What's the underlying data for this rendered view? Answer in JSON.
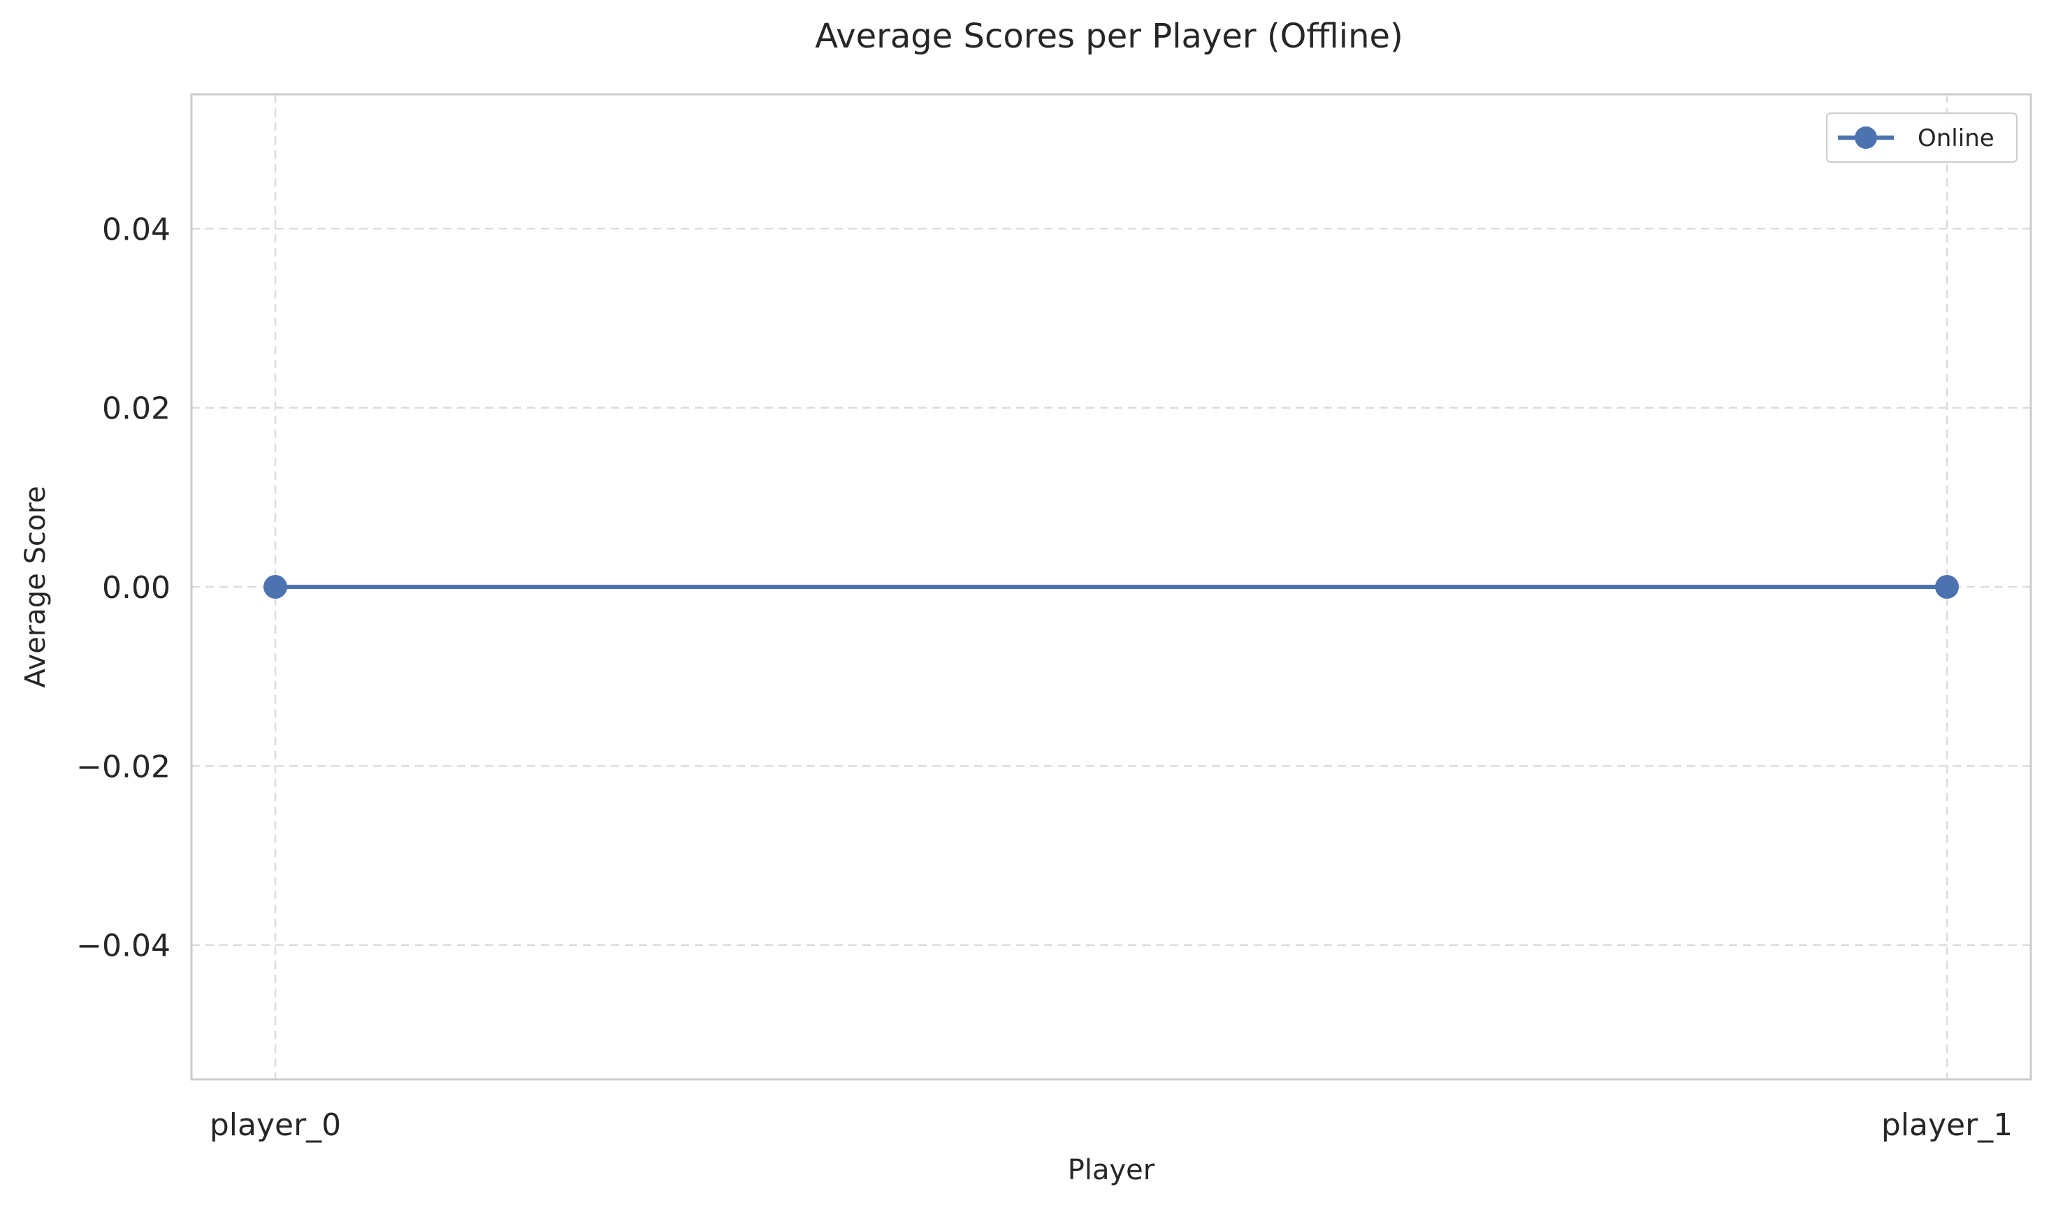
{
  "chart_data": {
    "type": "line",
    "title": "Average Scores per Player (Offline)",
    "xlabel": "Player",
    "ylabel": "Average Score",
    "categories": [
      "player_0",
      "player_1"
    ],
    "series": [
      {
        "name": "Online",
        "values": [
          0.0,
          0.0
        ],
        "color": "#4c72b0",
        "marker": "circle"
      }
    ],
    "ylim": [
      -0.055,
      0.055
    ],
    "yticks": [
      -0.04,
      -0.02,
      0.0,
      0.02,
      0.04
    ],
    "ytick_labels": [
      "−0.04",
      "−0.02",
      "0.00",
      "0.02",
      "0.04"
    ],
    "grid": true,
    "grid_style": "dashed",
    "legend_position": "top-right",
    "colors": {
      "axes_edge": "#cccccc",
      "grid": "#dcdcdc",
      "text": "#262626"
    }
  }
}
